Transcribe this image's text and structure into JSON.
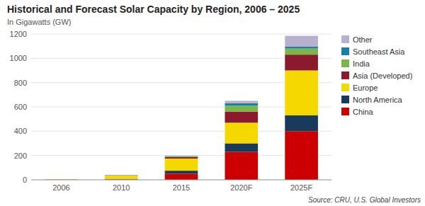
{
  "chart_data": {
    "type": "bar",
    "stacked": true,
    "title": "Historical and Forecast Solar Capacity by Region, 2006 – 2025",
    "subtitle": "In Gigawatts (GW)",
    "source": "Source: CRU, U.S. Global Investors",
    "categories": [
      "2006",
      "2010",
      "2015",
      "2020F",
      "2025F"
    ],
    "series": [
      {
        "name": "China",
        "color": "#cc0000",
        "values": [
          1,
          3,
          50,
          230,
          400
        ]
      },
      {
        "name": "North America",
        "color": "#1a3a5c",
        "values": [
          1,
          4,
          25,
          70,
          130
        ]
      },
      {
        "name": "Europe",
        "color": "#f5d800",
        "values": [
          3,
          28,
          100,
          170,
          370
        ]
      },
      {
        "name": "Asia (Developed)",
        "color": "#8b1a2e",
        "values": [
          0.5,
          2,
          12,
          90,
          130
        ]
      },
      {
        "name": "India",
        "color": "#7ab648",
        "values": [
          0.2,
          1,
          5,
          50,
          50
        ]
      },
      {
        "name": "Southeast Asia",
        "color": "#1a7fa8",
        "values": [
          0.1,
          0.5,
          3,
          20,
          15
        ]
      },
      {
        "name": "Other",
        "color": "#b8b0cc",
        "values": [
          0.2,
          1.5,
          5,
          20,
          90
        ]
      }
    ],
    "ylim": [
      0,
      1200
    ],
    "yticks": [
      0,
      200,
      400,
      600,
      800,
      1000,
      1200
    ],
    "grid": true,
    "legend": "right"
  }
}
